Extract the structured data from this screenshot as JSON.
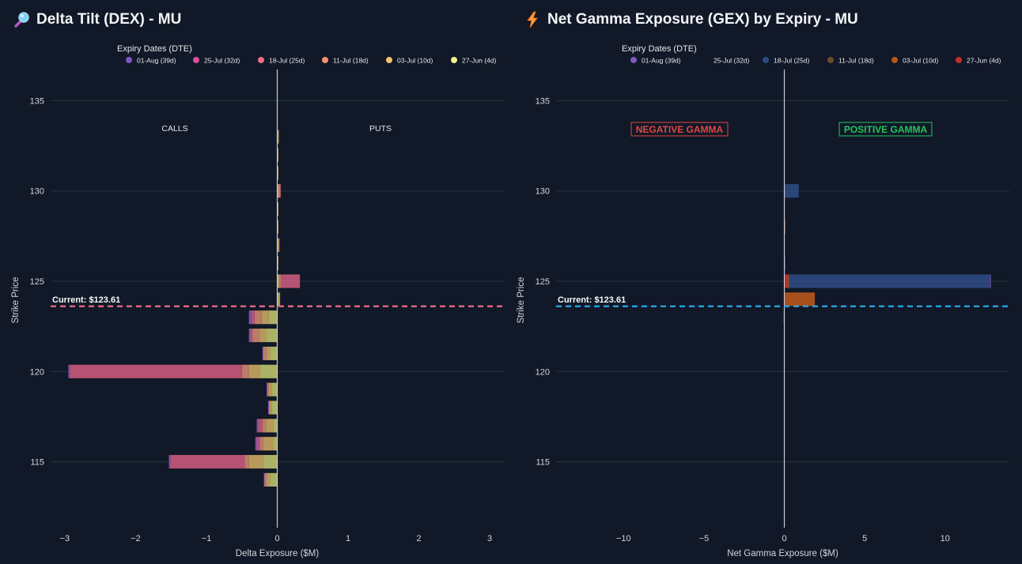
{
  "panels": {
    "left": {
      "title": "Delta Tilt (DEX) - MU",
      "title_icon": "magnifier-icon",
      "legend_title": "Expiry Dates (DTE)",
      "legend": [
        {
          "label": "01-Aug (39d)",
          "color": "#7e57c2"
        },
        {
          "label": "25-Jul (32d)",
          "color": "#d94f9c"
        },
        {
          "label": "18-Jul (25d)",
          "color": "#ef6b8a"
        },
        {
          "label": "11-Jul (18d)",
          "color": "#f2926c"
        },
        {
          "label": "03-Jul (10d)",
          "color": "#f2c06b"
        },
        {
          "label": "27-Jun (4d)",
          "color": "#f4f08a"
        }
      ],
      "annotations": {
        "calls": "CALLS",
        "puts": "PUTS"
      },
      "current_label": "Current: $123.61",
      "current_color": "#f06b8a"
    },
    "right": {
      "title": "Net Gamma Exposure (GEX) by Expiry - MU",
      "title_icon": "lightning-icon",
      "legend_title": "Expiry Dates (DTE)",
      "legend": [
        {
          "label": "01-Aug (39d)",
          "color": "#7e57c2"
        },
        {
          "label": "25-Jul (32d)",
          "color": "#111827"
        },
        {
          "label": "18-Jul (25d)",
          "color": "#2f4a80"
        },
        {
          "label": "11-Jul (18d)",
          "color": "#6b4a2e"
        },
        {
          "label": "03-Jul (10d)",
          "color": "#b5561a"
        },
        {
          "label": "27-Jun (4d)",
          "color": "#c0302b"
        }
      ],
      "annotations": {
        "negative": "NEGATIVE GAMMA",
        "positive": "POSITIVE GAMMA",
        "negative_color": "#e04646",
        "positive_color": "#22c55e"
      },
      "current_label": "Current: $123.61",
      "current_color": "#29a8e8"
    }
  },
  "chart_data": [
    {
      "type": "bar",
      "orientation": "horizontal",
      "stacked": true,
      "title": "Delta Tilt (DEX) - MU",
      "xlabel": "Delta Exposure ($M)",
      "ylabel": "Strike Price",
      "xlim": [
        -3.2,
        3.2
      ],
      "ylim": [
        111.7,
        136.2
      ],
      "xticks": [
        -3,
        -2,
        -1,
        0,
        1,
        2,
        3
      ],
      "yticks": [
        115,
        120,
        125,
        130,
        135
      ],
      "current_price": 123.61,
      "bar_height": 0.75,
      "stack_order": [
        "27-Jun (4d)",
        "03-Jul (10d)",
        "11-Jul (18d)",
        "18-Jul (25d)",
        "25-Jul (32d)",
        "01-Aug (39d)"
      ],
      "series_colors": {
        "01-Aug (39d)": "#7e57c2",
        "25-Jul (32d)": "#b9497d",
        "18-Jul (25d)": "#c4587a",
        "11-Jul (18d)": "#c9876d",
        "03-Jul (10d)": "#c7a561",
        "27-Jun (4d)": "#b9bf6a"
      },
      "bars": [
        {
          "strike": 133,
          "values": {
            "27-Jun (4d)": 0.01,
            "03-Jul (10d)": 0.01,
            "11-Jul (18d)": 0,
            "18-Jul (25d)": 0,
            "25-Jul (32d)": 0,
            "01-Aug (39d)": 0
          }
        },
        {
          "strike": 132,
          "values": {
            "27-Jun (4d)": 0.005,
            "03-Jul (10d)": 0.005,
            "11-Jul (18d)": 0,
            "18-Jul (25d)": 0,
            "25-Jul (32d)": 0,
            "01-Aug (39d)": 0
          }
        },
        {
          "strike": 131,
          "values": {
            "27-Jun (4d)": 0.005,
            "03-Jul (10d)": 0.005,
            "11-Jul (18d)": 0,
            "18-Jul (25d)": 0,
            "25-Jul (32d)": 0,
            "01-Aug (39d)": 0
          }
        },
        {
          "strike": 130,
          "values": {
            "27-Jun (4d)": 0.01,
            "03-Jul (10d)": 0.01,
            "11-Jul (18d)": 0.02,
            "18-Jul (25d)": 0.01,
            "25-Jul (32d)": 0,
            "01-Aug (39d)": 0
          }
        },
        {
          "strike": 129,
          "values": {
            "27-Jun (4d)": 0.005,
            "03-Jul (10d)": 0.005,
            "11-Jul (18d)": 0,
            "18-Jul (25d)": 0,
            "25-Jul (32d)": 0,
            "01-Aug (39d)": 0
          }
        },
        {
          "strike": 128,
          "values": {
            "27-Jun (4d)": 0.005,
            "03-Jul (10d)": 0.01,
            "11-Jul (18d)": 0,
            "18-Jul (25d)": 0,
            "25-Jul (32d)": 0,
            "01-Aug (39d)": 0
          }
        },
        {
          "strike": 127,
          "values": {
            "27-Jun (4d)": 0.01,
            "03-Jul (10d)": 0.01,
            "11-Jul (18d)": 0.005,
            "18-Jul (25d)": 0,
            "25-Jul (32d)": 0,
            "01-Aug (39d)": 0
          }
        },
        {
          "strike": 126,
          "values": {
            "27-Jun (4d)": 0.005,
            "03-Jul (10d)": 0.005,
            "11-Jul (18d)": 0,
            "18-Jul (25d)": 0,
            "25-Jul (32d)": 0,
            "01-Aug (39d)": 0
          }
        },
        {
          "strike": 125,
          "values": {
            "27-Jun (4d)": 0.01,
            "03-Jul (10d)": 0.02,
            "11-Jul (18d)": 0.02,
            "18-Jul (25d)": 0.27,
            "25-Jul (32d)": 0,
            "01-Aug (39d)": 0
          }
        },
        {
          "strike": 124,
          "values": {
            "27-Jun (4d)": 0.02,
            "03-Jul (10d)": 0.02,
            "11-Jul (18d)": 0,
            "18-Jul (25d)": 0,
            "25-Jul (32d)": 0,
            "01-Aug (39d)": 0
          }
        },
        {
          "strike": 123,
          "values": {
            "27-Jun (4d)": -0.12,
            "03-Jul (10d)": -0.1,
            "11-Jul (18d)": -0.1,
            "18-Jul (25d)": -0.05,
            "25-Jul (32d)": 0,
            "01-Aug (39d)": -0.03
          }
        },
        {
          "strike": 122,
          "values": {
            "27-Jun (4d)": -0.15,
            "03-Jul (10d)": -0.1,
            "11-Jul (18d)": -0.1,
            "18-Jul (25d)": -0.03,
            "25-Jul (32d)": 0,
            "01-Aug (39d)": -0.02
          }
        },
        {
          "strike": 121,
          "values": {
            "27-Jun (4d)": -0.1,
            "03-Jul (10d)": -0.05,
            "11-Jul (18d)": -0.05,
            "18-Jul (25d)": 0,
            "25-Jul (32d)": 0,
            "01-Aug (39d)": -0.01
          }
        },
        {
          "strike": 120,
          "values": {
            "27-Jun (4d)": -0.25,
            "03-Jul (10d)": -0.15,
            "11-Jul (18d)": -0.1,
            "18-Jul (25d)": -2.43,
            "25-Jul (32d)": 0,
            "01-Aug (39d)": -0.02
          }
        },
        {
          "strike": 119,
          "values": {
            "27-Jun (4d)": -0.08,
            "03-Jul (10d)": -0.04,
            "11-Jul (18d)": -0.02,
            "18-Jul (25d)": 0,
            "25-Jul (32d)": 0,
            "01-Aug (39d)": -0.01
          }
        },
        {
          "strike": 118,
          "values": {
            "27-Jun (4d)": -0.08,
            "03-Jul (10d)": -0.03,
            "11-Jul (18d)": -0.01,
            "18-Jul (25d)": 0,
            "25-Jul (32d)": 0,
            "01-Aug (39d)": -0.01
          }
        },
        {
          "strike": 117,
          "values": {
            "27-Jun (4d)": -0.06,
            "03-Jul (10d)": -0.1,
            "11-Jul (18d)": -0.05,
            "18-Jul (25d)": -0.06,
            "25-Jul (32d)": 0,
            "01-Aug (39d)": -0.02
          }
        },
        {
          "strike": 116,
          "values": {
            "27-Jun (4d)": -0.05,
            "03-Jul (10d)": -0.14,
            "11-Jul (18d)": -0.05,
            "18-Jul (25d)": -0.05,
            "25-Jul (32d)": 0,
            "01-Aug (39d)": -0.02
          }
        },
        {
          "strike": 115,
          "values": {
            "27-Jun (4d)": -0.2,
            "03-Jul (10d)": -0.2,
            "11-Jul (18d)": -0.06,
            "18-Jul (25d)": -1.05,
            "25-Jul (32d)": 0,
            "01-Aug (39d)": -0.02
          }
        },
        {
          "strike": 114,
          "values": {
            "27-Jun (4d)": -0.1,
            "03-Jul (10d)": -0.05,
            "11-Jul (18d)": -0.03,
            "18-Jul (25d)": 0,
            "25-Jul (32d)": 0,
            "01-Aug (39d)": -0.01
          }
        }
      ]
    },
    {
      "type": "bar",
      "orientation": "horizontal",
      "stacked": true,
      "title": "Net Gamma Exposure (GEX) by Expiry - MU",
      "xlabel": "Net Gamma Exposure ($M)",
      "ylabel": "Strike Price",
      "xlim": [
        -14.2,
        14.0
      ],
      "ylim": [
        111.7,
        136.2
      ],
      "xticks": [
        -10,
        -5,
        0,
        5,
        10
      ],
      "yticks": [
        115,
        120,
        125,
        130,
        135
      ],
      "current_price": 123.61,
      "bar_height": 0.75,
      "stack_order": [
        "27-Jun (4d)",
        "03-Jul (10d)",
        "11-Jul (18d)",
        "18-Jul (25d)",
        "25-Jul (32d)",
        "01-Aug (39d)"
      ],
      "series_colors": {
        "01-Aug (39d)": "#7e57c2",
        "25-Jul (32d)": "#2b3a55",
        "18-Jul (25d)": "#2f4a80",
        "11-Jul (18d)": "#6b4a2e",
        "03-Jul (10d)": "#b5561a",
        "27-Jun (4d)": "#c0302b"
      },
      "bars": [
        {
          "strike": 130,
          "values": {
            "27-Jun (4d)": 0,
            "03-Jul (10d)": 0,
            "11-Jul (18d)": 0,
            "18-Jul (25d)": 0.9,
            "25-Jul (32d)": 0,
            "01-Aug (39d)": 0
          }
        },
        {
          "strike": 128,
          "values": {
            "27-Jun (4d)": 0,
            "03-Jul (10d)": 0.06,
            "11-Jul (18d)": 0,
            "18-Jul (25d)": 0,
            "25-Jul (32d)": 0,
            "01-Aug (39d)": 0
          }
        },
        {
          "strike": 126,
          "values": {
            "27-Jun (4d)": 0,
            "03-Jul (10d)": 0,
            "11-Jul (18d)": 0,
            "18-Jul (25d)": 0,
            "25-Jul (32d)": 0,
            "01-Aug (39d)": 0.05
          }
        },
        {
          "strike": 125,
          "values": {
            "27-Jun (4d)": 0.2,
            "03-Jul (10d)": 0.08,
            "11-Jul (18d)": 0.02,
            "18-Jul (25d)": 12.5,
            "25-Jul (32d)": 0,
            "01-Aug (39d)": 0.05
          }
        },
        {
          "strike": 124,
          "values": {
            "27-Jun (4d)": 0.05,
            "03-Jul (10d)": 1.85,
            "11-Jul (18d)": 0,
            "18-Jul (25d)": 0,
            "25-Jul (32d)": 0,
            "01-Aug (39d)": 0
          }
        },
        {
          "strike": 123,
          "values": {
            "27-Jun (4d)": 0,
            "03-Jul (10d)": -0.04,
            "11-Jul (18d)": 0,
            "18-Jul (25d)": 0,
            "25-Jul (32d)": 0,
            "01-Aug (39d)": 0
          }
        }
      ]
    }
  ]
}
